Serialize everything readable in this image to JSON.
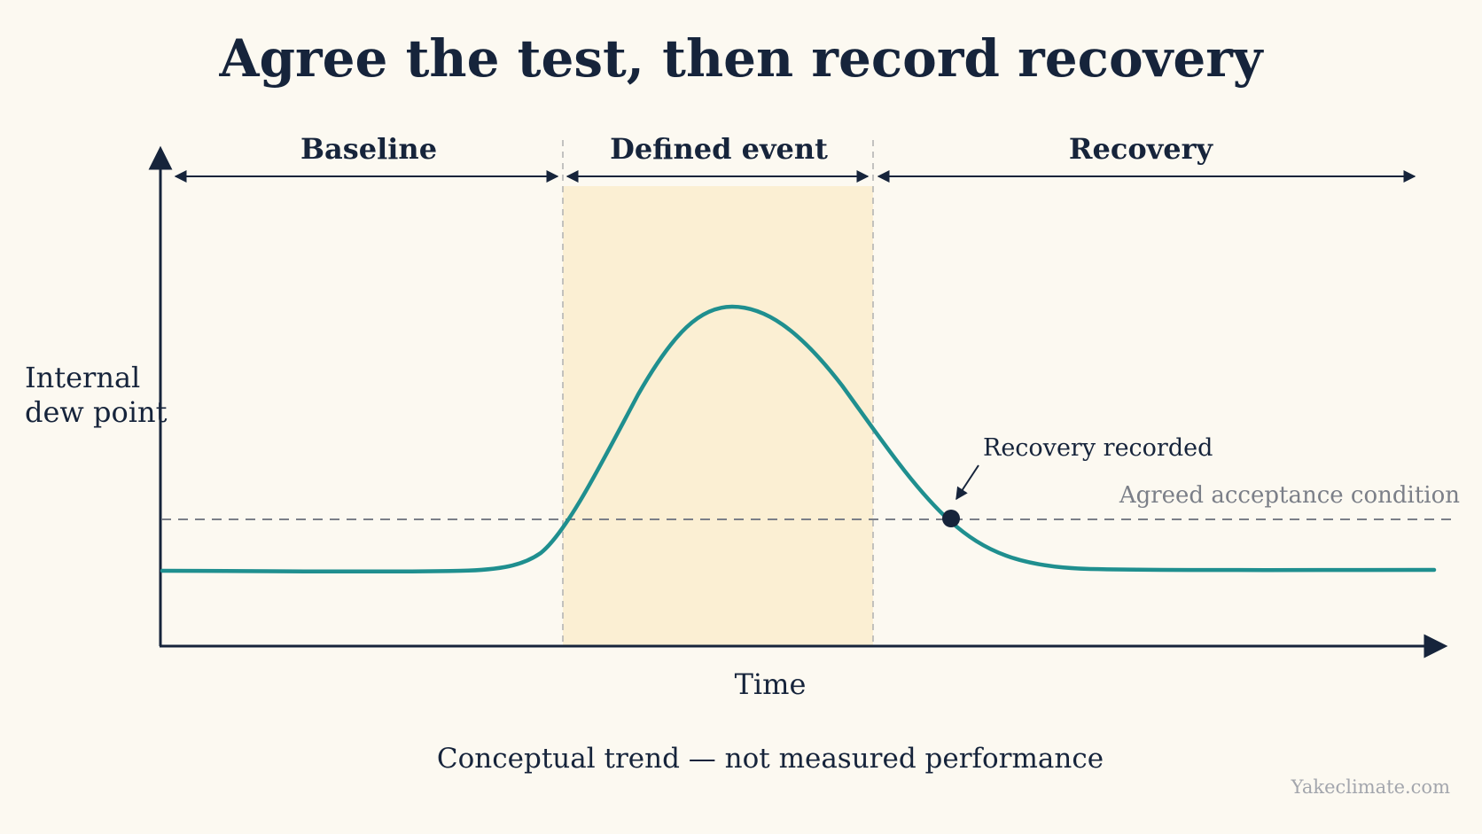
{
  "title": "Agree the test, then record recovery",
  "phases": {
    "baseline": "Baseline",
    "event": "Defined event",
    "recovery": "Recovery"
  },
  "axes": {
    "y_label_line1": "Internal",
    "y_label_line2": "dew point",
    "x_label": "Time"
  },
  "annotations": {
    "recovery_point": "Recovery recorded",
    "threshold": "Agreed acceptance condition"
  },
  "caption": "Conceptual trend — not measured performance",
  "watermark": "Yakeclimate.com",
  "colors": {
    "background": "#fcf9f1",
    "text": "#16243b",
    "curve": "#1f8f8f",
    "event_band": "#fbefd3",
    "threshold_line": "#7b7f88",
    "phase_divider": "#b4b4b4"
  }
}
